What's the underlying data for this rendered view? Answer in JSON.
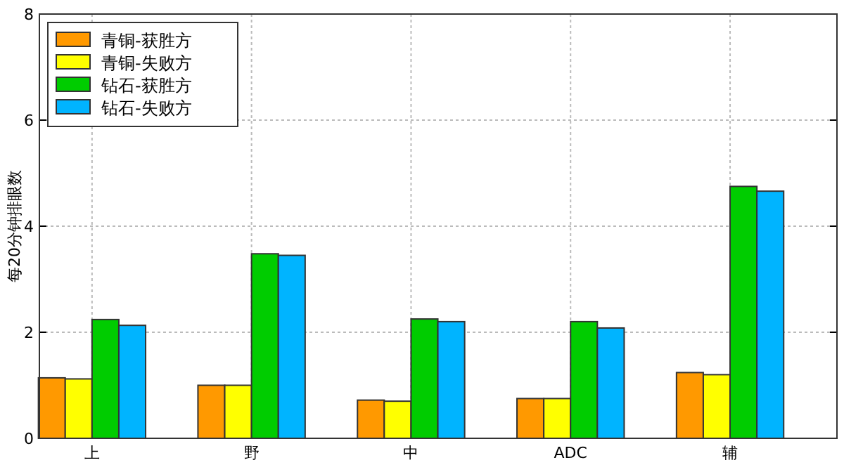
{
  "chart_data": {
    "type": "bar",
    "ylabel": "每20分钟排眼数",
    "categories": [
      "上",
      "野",
      "中",
      "ADC",
      "辅"
    ],
    "series": [
      {
        "name": "青铜-获胜方",
        "color": "#ff9900",
        "values": [
          1.14,
          1.0,
          0.72,
          0.75,
          1.24
        ]
      },
      {
        "name": "青铜-失败方",
        "color": "#ffff00",
        "values": [
          1.12,
          1.0,
          0.7,
          0.75,
          1.2
        ]
      },
      {
        "name": "钻石-获胜方",
        "color": "#00cc00",
        "values": [
          2.24,
          3.48,
          2.25,
          2.2,
          4.75
        ]
      },
      {
        "name": "钻石-失败方",
        "color": "#00b4ff",
        "values": [
          2.13,
          3.45,
          2.2,
          2.08,
          4.66
        ]
      }
    ],
    "ylim": [
      0,
      8
    ],
    "yticks": [
      0,
      2,
      4,
      6,
      8
    ],
    "grid": true,
    "legend": "top left"
  }
}
